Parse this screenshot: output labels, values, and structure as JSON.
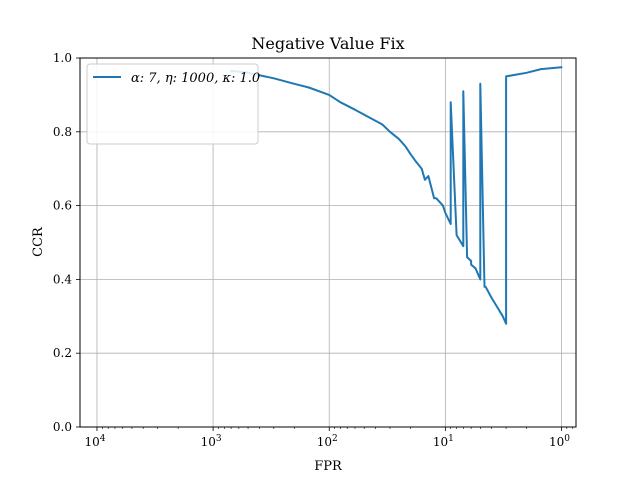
{
  "chart_data": {
    "type": "line",
    "title": "Negative Value Fix",
    "xlabel": "FPR",
    "ylabel": "CCR",
    "xscale": "log",
    "x_axis_reversed": true,
    "xlim": [
      14000,
      0.75
    ],
    "ylim": [
      0.0,
      1.0
    ],
    "grid": true,
    "legend_position": "top-left",
    "xticks": [
      {
        "value": 10000,
        "base": "10",
        "exp": "4"
      },
      {
        "value": 1000,
        "base": "10",
        "exp": "3"
      },
      {
        "value": 100,
        "base": "10",
        "exp": "2"
      },
      {
        "value": 10,
        "base": "10",
        "exp": "1"
      },
      {
        "value": 1,
        "base": "10",
        "exp": "0"
      }
    ],
    "yticks": [
      "0.0",
      "0.2",
      "0.4",
      "0.6",
      "0.8",
      "1.0"
    ],
    "series": [
      {
        "name": "α: 7,  η: 1000,  κ: 1.0",
        "color": "#1f77b4",
        "points": [
          [
            12.5,
            0.62
          ],
          [
            10,
            0.58
          ],
          [
            8,
            0.52
          ],
          [
            6.5,
            0.46
          ],
          [
            5.5,
            0.43
          ],
          [
            5,
            0.4
          ],
          [
            4.5,
            0.38
          ],
          [
            4,
            0.35
          ],
          [
            3.5,
            0.32
          ],
          [
            3,
            0.28
          ],
          [
            15,
            0.67
          ],
          [
            12,
            0.62
          ],
          [
            10.5,
            0.6
          ],
          [
            9,
            0.55
          ],
          [
            7,
            0.49
          ],
          [
            6,
            0.45
          ],
          [
            20,
            0.74
          ],
          [
            16,
            0.7
          ],
          [
            14,
            0.68
          ],
          [
            30,
            0.8
          ],
          [
            25,
            0.78
          ],
          [
            22,
            0.76
          ],
          [
            18,
            0.72
          ],
          [
            40,
            0.83
          ],
          [
            35,
            0.82
          ],
          [
            6,
            0.44
          ],
          [
            4.6,
            0.38
          ],
          [
            3.2,
            0.3
          ],
          [
            60,
            0.86
          ],
          [
            80,
            0.88
          ],
          [
            100,
            0.9
          ],
          [
            150,
            0.92
          ],
          [
            200,
            0.93
          ],
          [
            300,
            0.945
          ],
          [
            500,
            0.96
          ],
          [
            700,
            0.965
          ],
          [
            1,
            0.975
          ],
          [
            1.5,
            0.97
          ],
          [
            2,
            0.96
          ],
          [
            3,
            0.95
          ],
          [
            5,
            0.93
          ],
          [
            7,
            0.91
          ],
          [
            9,
            0.88
          ]
        ]
      }
    ]
  }
}
